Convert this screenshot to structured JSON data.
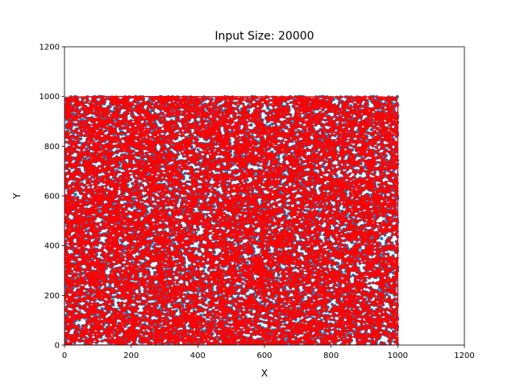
{
  "chart_data": {
    "type": "scatter",
    "title": "Input Size: 20000",
    "xlabel": "X",
    "ylabel": "Y",
    "xlim": [
      0,
      1200
    ],
    "ylim": [
      0,
      1200
    ],
    "xticks": [
      0,
      200,
      400,
      600,
      800,
      1000,
      1200
    ],
    "yticks": [
      0,
      200,
      400,
      600,
      800,
      1000,
      1200
    ],
    "xtick_labels": [
      "0",
      "200",
      "400",
      "600",
      "800",
      "1000",
      "1200"
    ],
    "ytick_labels": [
      "0",
      "200",
      "400",
      "600",
      "800",
      "1000",
      "1200"
    ],
    "grid": false,
    "point_count": 20000,
    "x_range": [
      0,
      1000
    ],
    "y_range": [
      0,
      1000
    ],
    "series": [
      {
        "role": "points",
        "color": "#1f77b4",
        "marker_size": 2
      },
      {
        "role": "hull",
        "color": "#ff0000",
        "line_width": 1.5
      }
    ],
    "hull_vertices": [
      [
        0,
        0
      ],
      [
        1000,
        0
      ],
      [
        1000,
        975
      ],
      [
        990,
        995
      ],
      [
        950,
        998
      ],
      [
        100,
        1000
      ],
      [
        20,
        997
      ],
      [
        0,
        990
      ],
      [
        0,
        0
      ]
    ]
  }
}
